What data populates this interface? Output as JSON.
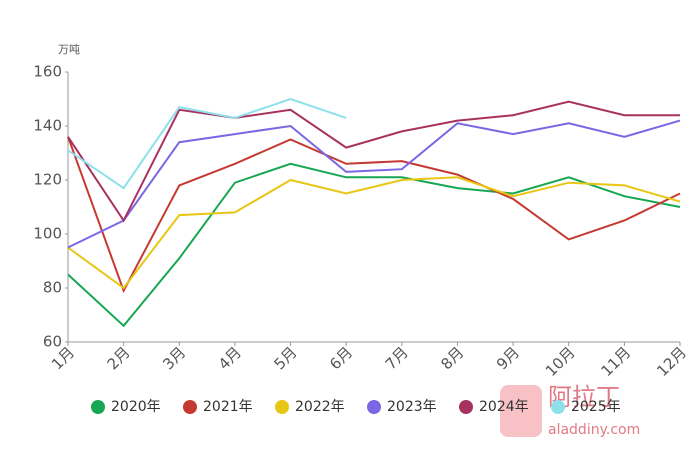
{
  "chart_data": {
    "type": "line",
    "unit_label": "万吨",
    "categories": [
      "1月",
      "2月",
      "3月",
      "4月",
      "5月",
      "6月",
      "7月",
      "8月",
      "9月",
      "10月",
      "11月",
      "12月"
    ],
    "ylim": [
      60,
      160
    ],
    "yticks": [
      60,
      80,
      100,
      120,
      140,
      160
    ],
    "grid": false,
    "legend": "bottom",
    "series": [
      {
        "name": "2020年",
        "color": "#17a752",
        "values": [
          85,
          66,
          91,
          119,
          126,
          121,
          121,
          117,
          115,
          121,
          114,
          110
        ]
      },
      {
        "name": "2021年",
        "color": "#c43a32",
        "values": [
          136,
          79,
          118,
          126,
          135,
          126,
          127,
          122,
          113,
          98,
          105,
          115
        ]
      },
      {
        "name": "2022年",
        "color": "#e8c614",
        "values": [
          95,
          80,
          107,
          108,
          120,
          115,
          120,
          121,
          114,
          119,
          118,
          112
        ]
      },
      {
        "name": "2023年",
        "color": "#7b66e4",
        "values": [
          95,
          105,
          134,
          137,
          140,
          123,
          124,
          141,
          137,
          141,
          136,
          142
        ]
      },
      {
        "name": "2024年",
        "color": "#a8325f",
        "values": [
          136,
          105,
          146,
          143,
          146,
          132,
          138,
          142,
          144,
          149,
          144,
          144
        ]
      },
      {
        "name": "2025年",
        "color": "#8ee0ea",
        "values": [
          131,
          117,
          147,
          143,
          150,
          143,
          null,
          null,
          null,
          null,
          null,
          null
        ]
      }
    ]
  },
  "watermark": {
    "name": "阿拉丁",
    "url": "aladdiny.com"
  }
}
